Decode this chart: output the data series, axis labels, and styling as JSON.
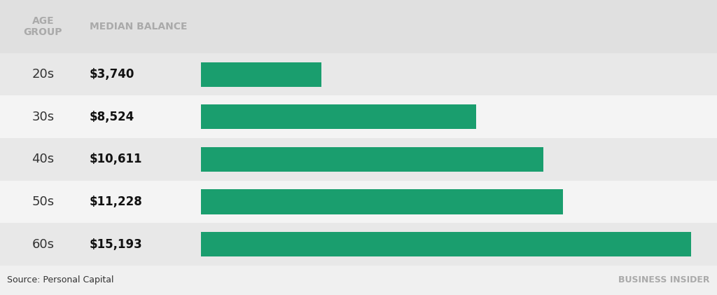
{
  "categories": [
    "20s",
    "30s",
    "40s",
    "50s",
    "60s"
  ],
  "values": [
    3740,
    8524,
    10611,
    11228,
    15193
  ],
  "labels": [
    "$3,740",
    "$8,524",
    "$10,611",
    "$11,228",
    "$15,193"
  ],
  "bar_color": "#1a9e6e",
  "max_value": 16000,
  "header_age": "AGE\nGROUP",
  "header_balance": "MEDIAN BALANCE",
  "header_color": "#aaaaaa",
  "source_text": "Source: Personal Capital",
  "brand_text": "BUSINESS INSIDER",
  "bg_color": "#f0f0f0",
  "row_bg_even": "#e8e8e8",
  "row_bg_odd": "#f4f4f4",
  "header_bg": "#e0e0e0",
  "value_label_color": "#111111",
  "category_label_color": "#333333"
}
